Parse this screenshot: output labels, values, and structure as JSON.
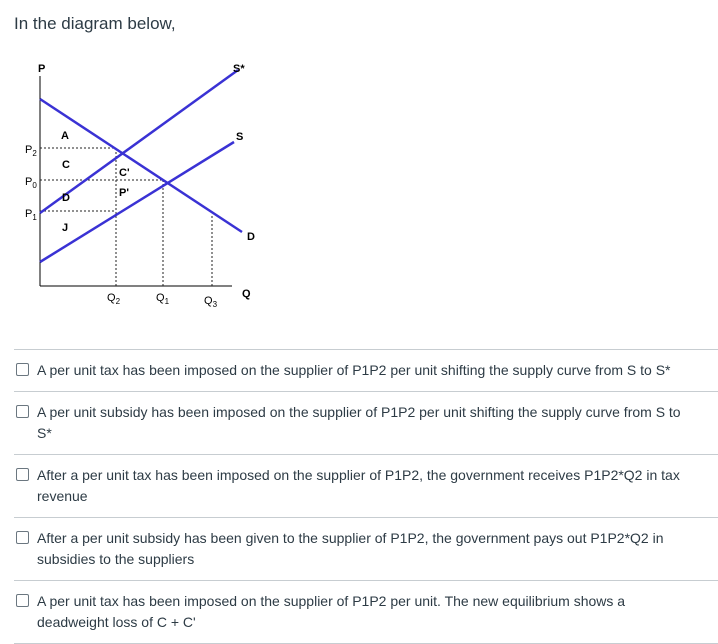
{
  "question": {
    "stem": "In the diagram below,"
  },
  "diagram": {
    "axis_p": "P",
    "label_s_star": "S*",
    "label_s": "S",
    "label_d_curve": "D",
    "label_q_axis": "Q",
    "label_a": "A",
    "label_c": "C",
    "label_d_area": "D",
    "label_j": "J",
    "label_c_prime": "C'",
    "label_p_prime": "P'",
    "p2": "P",
    "p2_sub": "2",
    "p0": "P",
    "p0_sub": "0",
    "p1": "P",
    "p1_sub": "1",
    "q2": "Q",
    "q2_sub": "2",
    "q1": "Q",
    "q1_sub": "1",
    "q3": "Q",
    "q3_sub": "3",
    "line_color": "#3a32d4"
  },
  "options": [
    "A per unit tax has been imposed on the supplier of P1P2 per unit shifting the supply curve from S to S*",
    "A per unit subsidy has been imposed on the supplier of P1P2 per unit shifting the supply curve from S to S*",
    "After a per unit tax has been imposed on the supplier of P1P2, the government receives P1P2*Q2 in tax revenue",
    "After a per unit subsidy has been given to the supplier of P1P2, the government pays out P1P2*Q2 in subsidies to the suppliers",
    "A per unit tax has been imposed on the supplier of P1P2 per unit. The new equilibrium shows a deadweight loss of C + C'"
  ]
}
